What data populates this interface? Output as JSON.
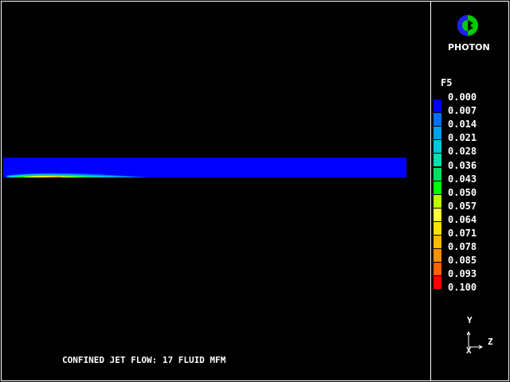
{
  "logo": {
    "text": "PHOTON",
    "icon": "photon-logo-icon"
  },
  "legend": {
    "variable": "F5",
    "labels": [
      "0.000",
      "0.007",
      "0.014",
      "0.021",
      "0.028",
      "0.036",
      "0.043",
      "0.050",
      "0.057",
      "0.064",
      "0.071",
      "0.078",
      "0.085",
      "0.093",
      "0.100"
    ],
    "colors": [
      "#0000ff",
      "#0070ff",
      "#00a0f0",
      "#00c8e0",
      "#00e0b0",
      "#00e060",
      "#00ff00",
      "#c0ff00",
      "#ffff40",
      "#ffe000",
      "#ffb800",
      "#ff9000",
      "#ff6000",
      "#ff0000"
    ]
  },
  "title": "CONFINED JET FLOW: 17 FLUID MFM",
  "axes": {
    "y": "Y",
    "z": "Z",
    "x": "X"
  },
  "colors": {
    "background": "#000000",
    "domain": "#0000ff"
  }
}
